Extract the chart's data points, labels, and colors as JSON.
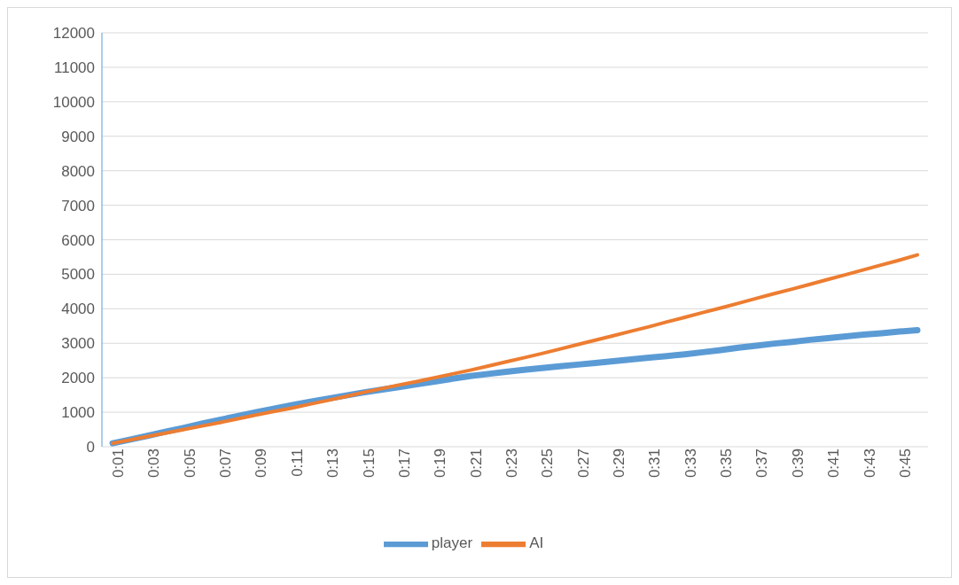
{
  "chart_data": {
    "type": "line",
    "categories": [
      "0:01",
      null,
      "0:03",
      null,
      "0:05",
      null,
      "0:07",
      null,
      "0:09",
      null,
      "0:11",
      null,
      "0:13",
      null,
      "0:15",
      null,
      "0:17",
      null,
      "0:19",
      null,
      "0:21",
      null,
      "0:23",
      null,
      "0:25",
      null,
      "0:27",
      null,
      "0:29",
      null,
      "0:31",
      null,
      "0:33",
      null,
      "0:35",
      null,
      "0:37",
      null,
      "0:39",
      null,
      "0:41",
      null,
      "0:43",
      null,
      "0:45",
      null
    ],
    "series": [
      {
        "name": "player",
        "color": "#5b9bd5",
        "values": [
          100,
          210,
          320,
          440,
          550,
          670,
          780,
          890,
          1000,
          1100,
          1200,
          1300,
          1390,
          1480,
          1570,
          1650,
          1730,
          1810,
          1890,
          1970,
          2050,
          2110,
          2170,
          2230,
          2280,
          2330,
          2380,
          2430,
          2480,
          2530,
          2580,
          2630,
          2680,
          2740,
          2800,
          2870,
          2930,
          2990,
          3040,
          3100,
          3150,
          3200,
          3250,
          3290,
          3340,
          3380
        ]
      },
      {
        "name": "AI",
        "color": "#ed7d31",
        "values": [
          100,
          200,
          300,
          400,
          500,
          600,
          700,
          810,
          920,
          1020,
          1120,
          1230,
          1340,
          1450,
          1570,
          1680,
          1790,
          1890,
          2000,
          2110,
          2220,
          2340,
          2460,
          2580,
          2700,
          2830,
          2960,
          3090,
          3220,
          3350,
          3480,
          3620,
          3750,
          3890,
          4020,
          4160,
          4300,
          4440,
          4570,
          4710,
          4850,
          4990,
          5130,
          5270,
          5410,
          5560
        ]
      }
    ],
    "ylim": [
      0,
      12000
    ],
    "yticks": [
      0,
      1000,
      2000,
      3000,
      4000,
      5000,
      6000,
      7000,
      8000,
      9000,
      10000,
      11000,
      12000
    ],
    "grid": "y",
    "legend": "bottom",
    "marker": "none",
    "line_style": "solid"
  }
}
